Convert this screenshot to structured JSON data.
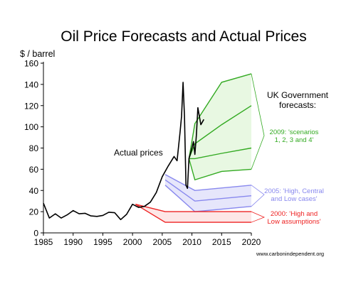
{
  "chart_data": {
    "type": "line",
    "title": "Oil Price Forecasts and Actual Prices",
    "ylabel": "$ / barrel",
    "xlabel": "",
    "xlim": [
      1985,
      2020
    ],
    "ylim": [
      0,
      160
    ],
    "x_ticks": [
      1985,
      1990,
      1995,
      2000,
      2005,
      2010,
      2015,
      2020
    ],
    "y_ticks": [
      0,
      20,
      40,
      60,
      80,
      100,
      120,
      140,
      160
    ],
    "grid": false,
    "series": [
      {
        "name": "Actual prices",
        "color": "#000000",
        "points": [
          [
            1985,
            28
          ],
          [
            1986,
            14
          ],
          [
            1987,
            18
          ],
          [
            1988,
            14
          ],
          [
            1989,
            17
          ],
          [
            1990,
            21
          ],
          [
            1991,
            18
          ],
          [
            1992,
            18.5
          ],
          [
            1993,
            16
          ],
          [
            1994,
            15.5
          ],
          [
            1995,
            16.5
          ],
          [
            1996,
            19.5
          ],
          [
            1997,
            19
          ],
          [
            1998,
            12.5
          ],
          [
            1999,
            17.5
          ],
          [
            2000,
            27
          ],
          [
            2001,
            24
          ],
          [
            2002,
            25
          ],
          [
            2003,
            29
          ],
          [
            2004,
            38
          ],
          [
            2005,
            53
          ],
          [
            2006,
            63
          ],
          [
            2007,
            72
          ],
          [
            2007.5,
            68
          ],
          [
            2008,
            95
          ],
          [
            2008.25,
            110
          ],
          [
            2008.5,
            142
          ],
          [
            2008.75,
            110
          ],
          [
            2009,
            45
          ],
          [
            2009.25,
            42
          ],
          [
            2009.5,
            70
          ],
          [
            2009.75,
            75
          ],
          [
            2010,
            80
          ],
          [
            2010.25,
            86
          ],
          [
            2010.5,
            74
          ],
          [
            2010.75,
            92
          ],
          [
            2011,
            118
          ],
          [
            2011.25,
            110
          ],
          [
            2011.5,
            102
          ],
          [
            2012,
            107
          ]
        ]
      }
    ],
    "forecasts": [
      {
        "group": "2009",
        "label": "2009: 'scenarios\n1, 2, 3 and 4'",
        "color": "#33aa22",
        "fill": "#e8f8e2",
        "lines": [
          [
            [
              2009.5,
              70
            ],
            [
              2010.5,
              103
            ],
            [
              2015,
              142
            ],
            [
              2020,
              150
            ]
          ],
          [
            [
              2009.5,
              70
            ],
            [
              2010.5,
              84
            ],
            [
              2015,
              102
            ],
            [
              2020,
              120
            ]
          ],
          [
            [
              2009.5,
              70
            ],
            [
              2010.5,
              70
            ],
            [
              2015,
              75
            ],
            [
              2020,
              80
            ]
          ],
          [
            [
              2009.5,
              70
            ],
            [
              2010.5,
              50
            ],
            [
              2015,
              58
            ],
            [
              2020,
              60
            ]
          ]
        ]
      },
      {
        "group": "2005",
        "label": "2005: 'High, Central\nand Low cases'",
        "color": "#8888ee",
        "fill": "#e6e6fb",
        "lines": [
          [
            [
              2005.5,
              55
            ],
            [
              2010.5,
              40
            ],
            [
              2020,
              45
            ]
          ],
          [
            [
              2005.5,
              50
            ],
            [
              2010.5,
              30
            ],
            [
              2020,
              35
            ]
          ],
          [
            [
              2005.5,
              45
            ],
            [
              2010.5,
              20
            ],
            [
              2020,
              25
            ]
          ]
        ]
      },
      {
        "group": "2000",
        "label": "2000: 'High and\nLow assumptions'",
        "color": "#ee2222",
        "fill": "#fde6e6",
        "lines": [
          [
            [
              2000.5,
              27
            ],
            [
              2005.5,
              20
            ],
            [
              2020,
              20
            ]
          ],
          [
            [
              2000.5,
              27
            ],
            [
              2005.5,
              10
            ],
            [
              2020,
              10
            ]
          ]
        ]
      }
    ],
    "annotations": {
      "actual_prices": "Actual prices",
      "uk_government": "UK Government\nforecasts:",
      "source": "www.carbonindependent.org"
    }
  }
}
